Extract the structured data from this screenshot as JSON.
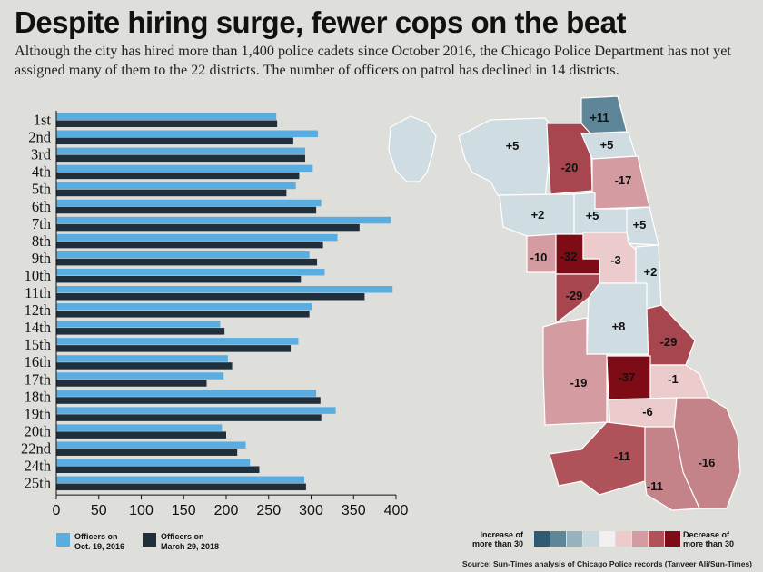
{
  "header": {
    "title": "Despite hiring surge, fewer cops on the beat",
    "subtitle": "Although the city has hired more than 1,400 police cadets since October 2016, the Chicago Police Department has not yet assigned many of them to the 22 districts. The number of officers on patrol has declined in 14 districts."
  },
  "chart_data": {
    "type": "bar",
    "orientation": "horizontal",
    "categories": [
      "1st",
      "2nd",
      "3rd",
      "4th",
      "5th",
      "6th",
      "7th",
      "8th",
      "9th",
      "10th",
      "11th",
      "12th",
      "14th",
      "15th",
      "16th",
      "17th",
      "18th",
      "19th",
      "20th",
      "22nd",
      "24th",
      "25th"
    ],
    "series": [
      {
        "name": "Officers on Oct. 19, 2016",
        "color": "#5aade0",
        "values": [
          259,
          308,
          293,
          302,
          282,
          312,
          394,
          331,
          298,
          316,
          396,
          301,
          193,
          285,
          202,
          197,
          306,
          329,
          195,
          223,
          228,
          292
        ]
      },
      {
        "name": "Officers on March 29, 2018",
        "color": "#1f2f3c",
        "values": [
          260,
          279,
          293,
          286,
          271,
          306,
          357,
          314,
          307,
          288,
          363,
          298,
          198,
          276,
          207,
          177,
          311,
          312,
          200,
          213,
          239,
          294
        ]
      }
    ],
    "xlim": [
      0,
      400
    ],
    "xticks": [
      0,
      50,
      100,
      150,
      200,
      250,
      300,
      350,
      400
    ],
    "xlabel": "",
    "ylabel": ""
  },
  "legend": {
    "series1": "Officers on Oct. 19, 2016",
    "series1_line1": "Officers on",
    "series1_line2": "Oct. 19, 2016",
    "series2_line1": "Officers on",
    "series2_line2": "March 29, 2018"
  },
  "map": {
    "districts": [
      {
        "change": "+11",
        "class": "s2"
      },
      {
        "change": "+5",
        "class": "s3"
      },
      {
        "change": "-20",
        "class": "d3"
      },
      {
        "change": "+5",
        "class": "s3"
      },
      {
        "change": "-17",
        "class": "d2"
      },
      {
        "change": "+2",
        "class": "s3"
      },
      {
        "change": "+5",
        "class": "s3"
      },
      {
        "change": "+5",
        "class": "s3"
      },
      {
        "change": "-10",
        "class": "d2"
      },
      {
        "change": "-32",
        "class": "d4"
      },
      {
        "change": "-3",
        "class": "d1"
      },
      {
        "change": "+2",
        "class": "s3"
      },
      {
        "change": "-29",
        "class": "d3"
      },
      {
        "change": "+8",
        "class": "s3"
      },
      {
        "change": "-29",
        "class": "d3"
      },
      {
        "change": "-19",
        "class": "d2"
      },
      {
        "change": "-37",
        "class": "d4"
      },
      {
        "change": "-1",
        "class": "d1"
      },
      {
        "change": "-6",
        "class": "d1"
      },
      {
        "change": "-11",
        "class": "d2"
      },
      {
        "change": "-16",
        "class": "d2"
      },
      {
        "change": "-11",
        "class": "d2"
      }
    ],
    "scale": {
      "left_line1": "Increase of",
      "left_line2": "more than 30",
      "right_line1": "Decrease of",
      "right_line2": "more than 30",
      "colors": [
        "#2e5a74",
        "#5f8599",
        "#95b2bf",
        "#c9d8df",
        "#f1efef",
        "#ebcbcc",
        "#d49ca0",
        "#b0525a",
        "#7e0c16"
      ]
    }
  },
  "source": "Source: Sun-Times analysis of Chicago Police records (Tanveer Ali/Sun-Times)"
}
